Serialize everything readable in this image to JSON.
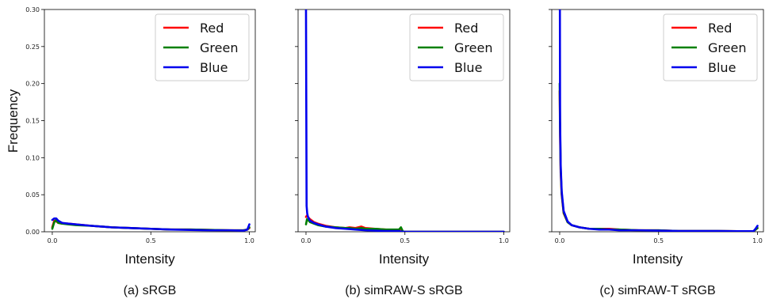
{
  "figure": {
    "ylabel": "Frequency",
    "xlabel": "Intensity"
  },
  "chart_data": [
    {
      "type": "line",
      "caption": "(a) sRGB",
      "xlabel": "Intensity",
      "ylabel": "Frequency",
      "xlim": [
        -0.04,
        1.03
      ],
      "ylim": [
        0,
        0.3
      ],
      "xticks": [
        "0.0",
        "0.5",
        "1.0"
      ],
      "yticks": [
        "0.00",
        "0.05",
        "0.10",
        "0.15",
        "0.20",
        "0.25",
        "0.30"
      ],
      "legend_position": "top-right",
      "series": [
        {
          "name": "Red",
          "color": "#ff0000",
          "x": [
            0.0,
            0.01,
            0.02,
            0.03,
            0.05,
            0.08,
            0.12,
            0.2,
            0.3,
            0.4,
            0.5,
            0.6,
            0.7,
            0.8,
            0.9,
            0.97,
            0.99,
            1.0
          ],
          "y": [
            0.006,
            0.015,
            0.014,
            0.012,
            0.011,
            0.011,
            0.01,
            0.008,
            0.006,
            0.005,
            0.004,
            0.003,
            0.003,
            0.0025,
            0.002,
            0.002,
            0.003,
            0.005
          ]
        },
        {
          "name": "Green",
          "color": "#008000",
          "x": [
            0.0,
            0.01,
            0.02,
            0.03,
            0.05,
            0.08,
            0.12,
            0.2,
            0.3,
            0.4,
            0.5,
            0.6,
            0.7,
            0.8,
            0.9,
            0.97,
            0.99,
            1.0
          ],
          "y": [
            0.004,
            0.013,
            0.016,
            0.012,
            0.011,
            0.01,
            0.009,
            0.008,
            0.006,
            0.005,
            0.004,
            0.003,
            0.003,
            0.0025,
            0.002,
            0.002,
            0.003,
            0.006
          ]
        },
        {
          "name": "Blue",
          "color": "#0000ee",
          "x": [
            0.0,
            0.01,
            0.02,
            0.03,
            0.05,
            0.08,
            0.12,
            0.2,
            0.3,
            0.4,
            0.5,
            0.6,
            0.7,
            0.8,
            0.9,
            0.97,
            0.99,
            1.0
          ],
          "y": [
            0.016,
            0.018,
            0.018,
            0.015,
            0.012,
            0.011,
            0.01,
            0.008,
            0.006,
            0.005,
            0.004,
            0.003,
            0.0025,
            0.002,
            0.002,
            0.0015,
            0.003,
            0.01
          ]
        }
      ]
    },
    {
      "type": "line",
      "caption": "(b) simRAW-S sRGB",
      "xlabel": "Intensity",
      "ylabel": "",
      "xlim": [
        -0.04,
        1.03
      ],
      "ylim": [
        0,
        0.3
      ],
      "xticks": [
        "0.0",
        "0.5",
        "1.0"
      ],
      "yticks": [],
      "legend_position": "top-right",
      "series": [
        {
          "name": "Red",
          "color": "#ff0000",
          "x": [
            0.0,
            0.005,
            0.01,
            0.02,
            0.04,
            0.06,
            0.1,
            0.15,
            0.2,
            0.22,
            0.25,
            0.28,
            0.3,
            0.35,
            0.4,
            0.45,
            0.47,
            0.48,
            0.49,
            0.5,
            0.7,
            1.0
          ],
          "y": [
            0.02,
            0.022,
            0.02,
            0.017,
            0.013,
            0.011,
            0.008,
            0.006,
            0.005,
            0.006,
            0.005,
            0.007,
            0.005,
            0.004,
            0.003,
            0.002,
            0.002,
            0.004,
            0.0003,
            0.0,
            0.0,
            0.0
          ]
        },
        {
          "name": "Green",
          "color": "#008000",
          "x": [
            0.0,
            0.005,
            0.01,
            0.02,
            0.04,
            0.06,
            0.1,
            0.15,
            0.2,
            0.22,
            0.25,
            0.28,
            0.3,
            0.35,
            0.4,
            0.45,
            0.47,
            0.48,
            0.49,
            0.5,
            0.7,
            1.0
          ],
          "y": [
            0.01,
            0.017,
            0.016,
            0.013,
            0.011,
            0.009,
            0.007,
            0.006,
            0.005,
            0.005,
            0.004,
            0.005,
            0.004,
            0.004,
            0.003,
            0.003,
            0.003,
            0.006,
            0.0003,
            0.0,
            0.0,
            0.0
          ]
        },
        {
          "name": "Blue",
          "color": "#0000ee",
          "x": [
            0.0,
            0.003,
            0.006,
            0.01,
            0.02,
            0.04,
            0.06,
            0.1,
            0.15,
            0.2,
            0.25,
            0.3,
            0.4,
            0.47,
            0.48,
            0.5,
            0.7,
            1.0
          ],
          "y": [
            0.3,
            0.035,
            0.025,
            0.02,
            0.015,
            0.012,
            0.01,
            0.007,
            0.005,
            0.004,
            0.003,
            0.002,
            0.001,
            0.001,
            0.0003,
            0.0,
            0.0,
            0.0
          ]
        }
      ]
    },
    {
      "type": "line",
      "caption": "(c) simRAW-T sRGB",
      "xlabel": "Intensity",
      "ylabel": "",
      "xlim": [
        -0.04,
        1.03
      ],
      "ylim": [
        0,
        0.3
      ],
      "xticks": [
        "0.0",
        "0.5",
        "1.0"
      ],
      "yticks": [],
      "legend_position": "top-right",
      "series": [
        {
          "name": "Red",
          "color": "#ff0000",
          "x": [
            0.0,
            0.002,
            0.005,
            0.01,
            0.02,
            0.04,
            0.06,
            0.1,
            0.15,
            0.2,
            0.25,
            0.3,
            0.4,
            0.5,
            0.6,
            0.7,
            0.8,
            0.9,
            0.98,
            1.0
          ],
          "y": [
            0.19,
            0.13,
            0.08,
            0.05,
            0.025,
            0.013,
            0.009,
            0.006,
            0.004,
            0.004,
            0.004,
            0.003,
            0.002,
            0.002,
            0.001,
            0.001,
            0.001,
            0.0008,
            0.0008,
            0.005
          ]
        },
        {
          "name": "Green",
          "color": "#008000",
          "x": [
            0.0,
            0.002,
            0.005,
            0.01,
            0.02,
            0.04,
            0.06,
            0.1,
            0.15,
            0.2,
            0.25,
            0.3,
            0.4,
            0.5,
            0.6,
            0.7,
            0.8,
            0.9,
            0.98,
            1.0
          ],
          "y": [
            0.2,
            0.14,
            0.085,
            0.052,
            0.026,
            0.013,
            0.009,
            0.006,
            0.004,
            0.004,
            0.003,
            0.003,
            0.002,
            0.002,
            0.001,
            0.001,
            0.001,
            0.0008,
            0.0008,
            0.005
          ]
        },
        {
          "name": "Blue",
          "color": "#0000ee",
          "x": [
            0.0,
            0.001,
            0.002,
            0.005,
            0.01,
            0.02,
            0.04,
            0.06,
            0.1,
            0.15,
            0.2,
            0.25,
            0.3,
            0.4,
            0.5,
            0.6,
            0.7,
            0.8,
            0.9,
            0.98,
            0.99,
            1.0
          ],
          "y": [
            0.3,
            0.3,
            0.15,
            0.09,
            0.055,
            0.028,
            0.014,
            0.009,
            0.006,
            0.004,
            0.003,
            0.003,
            0.002,
            0.002,
            0.0015,
            0.001,
            0.001,
            0.001,
            0.0008,
            0.0008,
            0.004,
            0.008
          ]
        }
      ]
    }
  ]
}
